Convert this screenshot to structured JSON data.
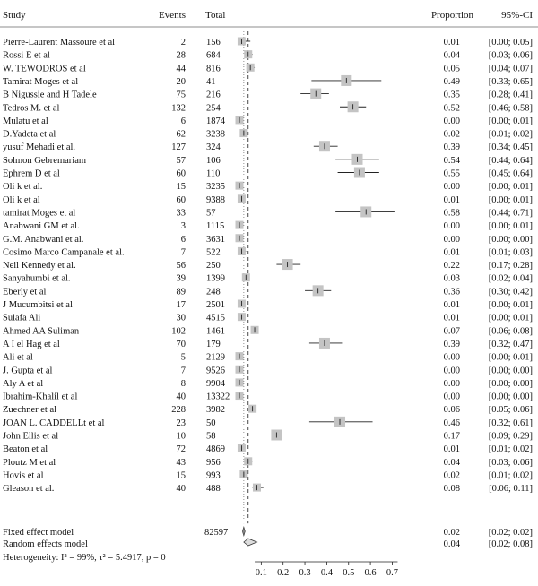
{
  "headers": {
    "study": "Study",
    "events": "Events",
    "total": "Total",
    "proportion": "Proportion",
    "ci": "95%-CI"
  },
  "chart_data": {
    "type": "forest",
    "xlim": [
      0,
      0.75
    ],
    "xticks": [
      "0.1",
      "0.2",
      "0.3",
      "0.4",
      "0.5",
      "0.6",
      "0.7"
    ],
    "fixed_line": 0.02,
    "random_line": 0.04,
    "studies": [
      {
        "study": "Pierre-Laurent Massoure et al",
        "events": "2",
        "total": "156",
        "prop_text": "0.01",
        "ci_text": "[0.00; 0.05]",
        "p": 0.01,
        "lo": 0.0,
        "hi": 0.05
      },
      {
        "study": "Rossi E et al",
        "events": "28",
        "total": "684",
        "prop_text": "0.04",
        "ci_text": "[0.03; 0.06]",
        "p": 0.04,
        "lo": 0.03,
        "hi": 0.06
      },
      {
        "study": "W. TEWODROS et al",
        "events": "44",
        "total": "816",
        "prop_text": "0.05",
        "ci_text": "[0.04; 0.07]",
        "p": 0.05,
        "lo": 0.04,
        "hi": 0.07
      },
      {
        "study": "Tamirat Moges et al",
        "events": "20",
        "total": "41",
        "prop_text": "0.49",
        "ci_text": "[0.33; 0.65]",
        "p": 0.49,
        "lo": 0.33,
        "hi": 0.65
      },
      {
        "study": "B Nigussie and H Tadele",
        "events": "75",
        "total": "216",
        "prop_text": "0.35",
        "ci_text": "[0.28; 0.41]",
        "p": 0.35,
        "lo": 0.28,
        "hi": 0.41
      },
      {
        "study": "Tedros M. et al",
        "events": "132",
        "total": "254",
        "prop_text": "0.52",
        "ci_text": "[0.46; 0.58]",
        "p": 0.52,
        "lo": 0.46,
        "hi": 0.58
      },
      {
        "study": "Mulatu et al",
        "events": "6",
        "total": "1874",
        "prop_text": "0.00",
        "ci_text": "[0.00; 0.01]",
        "p": 0.0,
        "lo": 0.0,
        "hi": 0.01
      },
      {
        "study": "D.Yadeta et al",
        "events": "62",
        "total": "3238",
        "prop_text": "0.02",
        "ci_text": "[0.01; 0.02]",
        "p": 0.02,
        "lo": 0.01,
        "hi": 0.02
      },
      {
        "study": "yusuf Mehadi et al.",
        "events": "127",
        "total": "324",
        "prop_text": "0.39",
        "ci_text": "[0.34; 0.45]",
        "p": 0.39,
        "lo": 0.34,
        "hi": 0.45
      },
      {
        "study": "Solmon Gebremariam",
        "events": "57",
        "total": "106",
        "prop_text": "0.54",
        "ci_text": "[0.44; 0.64]",
        "p": 0.54,
        "lo": 0.44,
        "hi": 0.64
      },
      {
        "study": "Ephrem D et al",
        "events": "60",
        "total": "110",
        "prop_text": "0.55",
        "ci_text": "[0.45; 0.64]",
        "p": 0.55,
        "lo": 0.45,
        "hi": 0.64
      },
      {
        "study": "Oli k et al.",
        "events": "15",
        "total": "3235",
        "prop_text": "0.00",
        "ci_text": "[0.00; 0.01]",
        "p": 0.0,
        "lo": 0.0,
        "hi": 0.01
      },
      {
        "study": "Oli k et al",
        "events": "60",
        "total": "9388",
        "prop_text": "0.01",
        "ci_text": "[0.00; 0.01]",
        "p": 0.01,
        "lo": 0.0,
        "hi": 0.01
      },
      {
        "study": "tamirat Moges et al",
        "events": "33",
        "total": "57",
        "prop_text": "0.58",
        "ci_text": "[0.44; 0.71]",
        "p": 0.58,
        "lo": 0.44,
        "hi": 0.71
      },
      {
        "study": "Anabwani GM et al.",
        "events": "3",
        "total": "1115",
        "prop_text": "0.00",
        "ci_text": "[0.00; 0.01]",
        "p": 0.0,
        "lo": 0.0,
        "hi": 0.01
      },
      {
        "study": "G.M. Anabwani et al.",
        "events": "6",
        "total": "3631",
        "prop_text": "0.00",
        "ci_text": "[0.00; 0.00]",
        "p": 0.0,
        "lo": 0.0,
        "hi": 0.0
      },
      {
        "study": "Cosimo Marco Campanale et al.",
        "events": "7",
        "total": "522",
        "prop_text": "0.01",
        "ci_text": "[0.01; 0.03]",
        "p": 0.01,
        "lo": 0.01,
        "hi": 0.03
      },
      {
        "study": "Neil Kennedy et al.",
        "events": "56",
        "total": "250",
        "prop_text": "0.22",
        "ci_text": "[0.17; 0.28]",
        "p": 0.22,
        "lo": 0.17,
        "hi": 0.28
      },
      {
        "study": "Sanyahumbi et al.",
        "events": "39",
        "total": "1399",
        "prop_text": "0.03",
        "ci_text": "[0.02; 0.04]",
        "p": 0.03,
        "lo": 0.02,
        "hi": 0.04
      },
      {
        "study": "Eberly et al",
        "events": "89",
        "total": "248",
        "prop_text": "0.36",
        "ci_text": "[0.30; 0.42]",
        "p": 0.36,
        "lo": 0.3,
        "hi": 0.42
      },
      {
        "study": "J Mucumbitsi et al",
        "events": "17",
        "total": "2501",
        "prop_text": "0.01",
        "ci_text": "[0.00; 0.01]",
        "p": 0.01,
        "lo": 0.0,
        "hi": 0.01
      },
      {
        "study": "Sulafa Ali",
        "events": "30",
        "total": "4515",
        "prop_text": "0.01",
        "ci_text": "[0.00; 0.01]",
        "p": 0.01,
        "lo": 0.0,
        "hi": 0.01
      },
      {
        "study": "Ahmed AA Suliman",
        "events": "102",
        "total": "1461",
        "prop_text": "0.07",
        "ci_text": "[0.06; 0.08]",
        "p": 0.07,
        "lo": 0.06,
        "hi": 0.08
      },
      {
        "study": "A I el Hag et al",
        "events": "70",
        "total": "179",
        "prop_text": "0.39",
        "ci_text": "[0.32; 0.47]",
        "p": 0.39,
        "lo": 0.32,
        "hi": 0.47
      },
      {
        "study": "Ali et al",
        "events": "5",
        "total": "2129",
        "prop_text": "0.00",
        "ci_text": "[0.00; 0.01]",
        "p": 0.0,
        "lo": 0.0,
        "hi": 0.01
      },
      {
        "study": "J. Gupta et al",
        "events": "7",
        "total": "9526",
        "prop_text": "0.00",
        "ci_text": "[0.00; 0.00]",
        "p": 0.0,
        "lo": 0.0,
        "hi": 0.0
      },
      {
        "study": "Aly A et al",
        "events": "8",
        "total": "9904",
        "prop_text": "0.00",
        "ci_text": "[0.00; 0.00]",
        "p": 0.0,
        "lo": 0.0,
        "hi": 0.0
      },
      {
        "study": "Ibrahim-Khalil et al",
        "events": "40",
        "total": "13322",
        "prop_text": "0.00",
        "ci_text": "[0.00; 0.00]",
        "p": 0.0,
        "lo": 0.0,
        "hi": 0.0
      },
      {
        "study": "Zuechner et al",
        "events": "228",
        "total": "3982",
        "prop_text": "0.06",
        "ci_text": "[0.05; 0.06]",
        "p": 0.06,
        "lo": 0.05,
        "hi": 0.06
      },
      {
        "study": "JOAN L. CADDELLt et al",
        "events": "23",
        "total": "50",
        "prop_text": "0.46",
        "ci_text": "[0.32; 0.61]",
        "p": 0.46,
        "lo": 0.32,
        "hi": 0.61
      },
      {
        "study": "John Ellis et al",
        "events": "10",
        "total": "58",
        "prop_text": "0.17",
        "ci_text": "[0.09; 0.29]",
        "p": 0.17,
        "lo": 0.09,
        "hi": 0.29
      },
      {
        "study": "Beaton et al",
        "events": "72",
        "total": "4869",
        "prop_text": "0.01",
        "ci_text": "[0.01; 0.02]",
        "p": 0.01,
        "lo": 0.01,
        "hi": 0.02
      },
      {
        "study": "Ploutz M et al",
        "events": "43",
        "total": "956",
        "prop_text": "0.04",
        "ci_text": "[0.03; 0.06]",
        "p": 0.04,
        "lo": 0.03,
        "hi": 0.06
      },
      {
        "study": "Hovis et al",
        "events": "15",
        "total": "993",
        "prop_text": "0.02",
        "ci_text": "[0.01; 0.02]",
        "p": 0.02,
        "lo": 0.01,
        "hi": 0.02
      },
      {
        "study": "Gleason et al.",
        "events": "40",
        "total": "488",
        "prop_text": "0.08",
        "ci_text": "[0.06; 0.11]",
        "p": 0.08,
        "lo": 0.06,
        "hi": 0.11
      }
    ],
    "fixed": {
      "label": "Fixed effect model",
      "total": "82597",
      "prop_text": "0.02",
      "ci_text": "[0.02; 0.02]",
      "p": 0.02,
      "lo": 0.02,
      "hi": 0.02
    },
    "random": {
      "label": "Random effects model",
      "prop_text": "0.04",
      "ci_text": "[0.02; 0.08]",
      "p": 0.04,
      "lo": 0.02,
      "hi": 0.08
    },
    "heterogeneity": "Heterogeneity: I² = 99%, τ² = 5.4917, p = 0"
  }
}
